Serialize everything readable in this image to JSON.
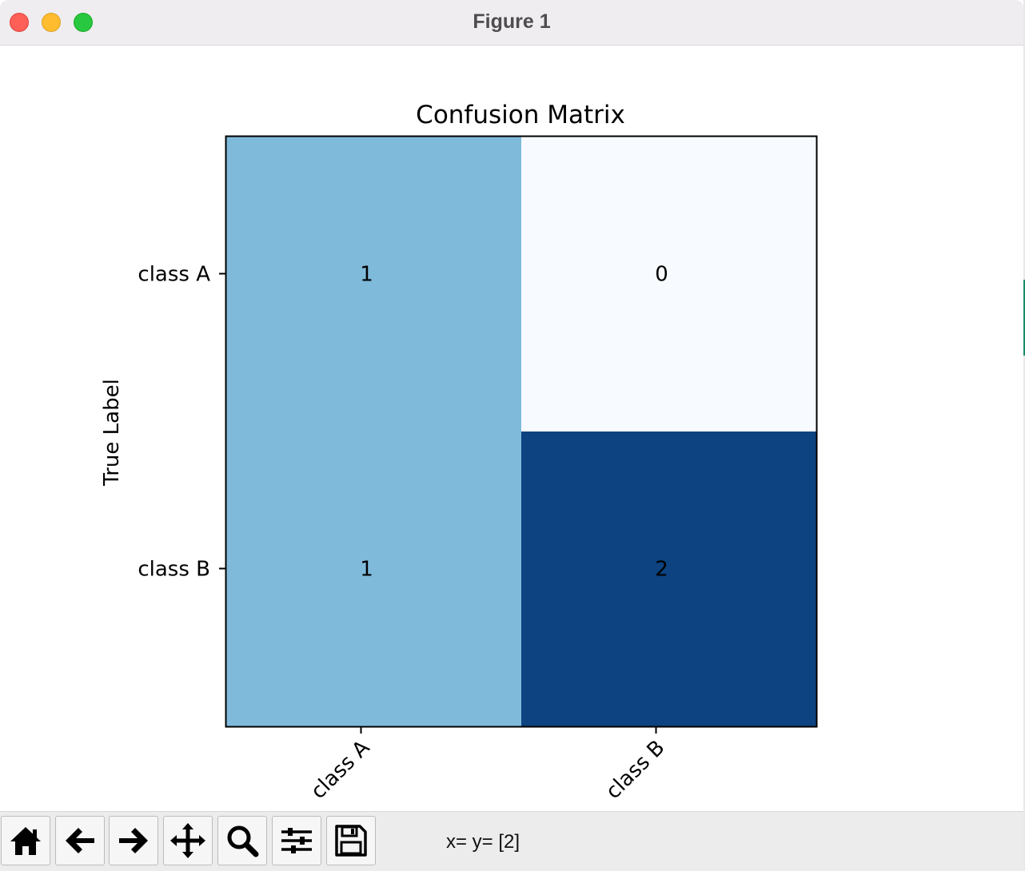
{
  "window": {
    "title": "Figure 1"
  },
  "chart_data": {
    "type": "heatmap",
    "title": "Confusion Matrix",
    "ylabel": "True Label",
    "xlabel": "",
    "x_categories": [
      "class A",
      "class B"
    ],
    "y_categories": [
      "class A",
      "class B"
    ],
    "values": [
      [
        1,
        0
      ],
      [
        1,
        2
      ]
    ],
    "colormap": "Blues",
    "colors": [
      "#f7fbff",
      "#7fbadb",
      "#0c4380"
    ],
    "vmin": 0,
    "vmax": 2
  },
  "toolbar": {
    "status_text": "x= y= [2]",
    "buttons": [
      {
        "name": "home-button",
        "icon": "home-icon"
      },
      {
        "name": "back-button",
        "icon": "arrow-left-icon"
      },
      {
        "name": "forward-button",
        "icon": "arrow-right-icon"
      },
      {
        "name": "pan-button",
        "icon": "move-icon"
      },
      {
        "name": "zoom-button",
        "icon": "magnifier-icon"
      },
      {
        "name": "configure-subplots-button",
        "icon": "sliders-icon"
      },
      {
        "name": "save-button",
        "icon": "floppy-disk-icon"
      }
    ]
  }
}
